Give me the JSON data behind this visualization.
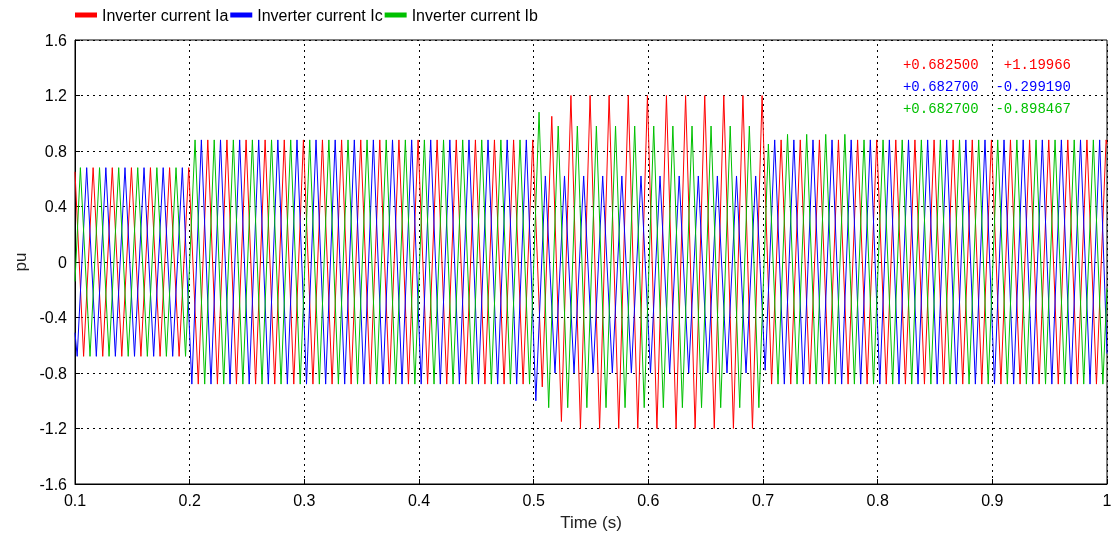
{
  "chart_data": {
    "type": "line",
    "xlabel": "Time (s)",
    "ylabel": "pu",
    "xlim": [
      0.1,
      1
    ],
    "xticks": [
      0.1,
      0.2,
      0.3,
      0.4,
      0.5,
      0.6,
      0.7,
      0.8,
      0.9,
      1
    ],
    "ylim": [
      -1.6,
      1.6
    ],
    "yticks": [
      -1.6,
      -1.2,
      -0.8,
      -0.4,
      0,
      0.4,
      0.8,
      1.2,
      1.6
    ],
    "grid": true,
    "legend": "top left",
    "marker": "none",
    "line_style": "solid",
    "annotations": [
      "+0.682500   +1.19966",
      "+0.682700  -0.299190",
      "+0.682700  -0.898467"
    ],
    "series": [
      {
        "name": "Inverter current Ia",
        "color": "#ff0000",
        "x": [
          0.1,
          0.1075,
          0.1158,
          0.1242,
          0.1325,
          0.1408,
          0.1492,
          0.1575,
          0.1658,
          0.1742,
          0.1825,
          0.1908,
          0.1992,
          0.2075,
          0.2158,
          0.2242,
          0.2325,
          0.2408,
          0.2492,
          0.2575,
          0.2658,
          0.2742,
          0.2825,
          0.2908,
          0.2992,
          0.3075,
          0.3158,
          0.3242,
          0.3325,
          0.3408,
          0.3492,
          0.3575,
          0.3658,
          0.3742,
          0.3825,
          0.3908,
          0.3992,
          0.4075,
          0.4158,
          0.4242,
          0.4325,
          0.4408,
          0.4492,
          0.4575,
          0.4658,
          0.4742,
          0.4825,
          0.4908,
          0.4992,
          0.5075,
          0.5158,
          0.5242,
          0.5325,
          0.5408,
          0.5492,
          0.5575,
          0.5658,
          0.5742,
          0.5825,
          0.5908,
          0.5992,
          0.6075,
          0.6158,
          0.6242,
          0.6325,
          0.6408,
          0.6492,
          0.6575,
          0.6658,
          0.6742,
          0.6825,
          0.6908,
          0.6992,
          0.7075,
          0.7158,
          0.7242,
          0.7325,
          0.7408,
          0.7492,
          0.7575,
          0.7658,
          0.7742,
          0.7825,
          0.7908,
          0.7992,
          0.8075,
          0.8158,
          0.8242,
          0.8325,
          0.8408,
          0.8492,
          0.8575,
          0.8658,
          0.8742,
          0.8825,
          0.8908,
          0.8992,
          0.9075,
          0.9158,
          0.9242,
          0.9325,
          0.9408,
          0.9492,
          0.9575,
          0.9658,
          0.9742,
          0.9825,
          0.9908,
          0.9992,
          1.0
        ],
        "values": [
          0.65,
          -0.68,
          0.68,
          -0.68,
          0.68,
          -0.68,
          0.68,
          -0.68,
          0.68,
          -0.68,
          0.68,
          -0.68,
          0.68,
          -0.88,
          0.88,
          -0.88,
          0.88,
          -0.88,
          0.88,
          -0.88,
          0.88,
          -0.88,
          0.88,
          -0.88,
          0.88,
          -0.88,
          0.88,
          -0.88,
          0.88,
          -0.88,
          0.88,
          -0.88,
          0.88,
          -0.88,
          0.88,
          -0.88,
          0.88,
          -0.88,
          0.88,
          -0.88,
          0.88,
          -0.88,
          0.88,
          -0.88,
          0.88,
          -0.88,
          0.88,
          -0.88,
          0.88,
          -0.9,
          1.05,
          -1.15,
          1.2,
          -1.2,
          1.2,
          -1.2,
          1.2,
          -1.2,
          1.2,
          -1.2,
          1.2,
          -1.2,
          1.2,
          -1.2,
          1.2,
          -1.2,
          1.2,
          -1.2,
          1.2,
          -1.2,
          1.2,
          -1.2,
          1.2,
          -0.88,
          0.88,
          -0.88,
          0.88,
          -0.88,
          0.88,
          -0.88,
          0.88,
          -0.88,
          0.88,
          -0.88,
          0.88,
          -0.88,
          0.88,
          -0.88,
          0.88,
          -0.88,
          0.88,
          -0.88,
          0.88,
          -0.88,
          0.88,
          -0.88,
          0.88,
          -0.88,
          0.88,
          -0.88,
          0.88,
          -0.88,
          0.88,
          -0.88,
          0.88,
          -0.88,
          0.88,
          -0.88,
          0.88,
          0.85
        ]
      },
      {
        "name": "Inverter current Ic",
        "color": "#0000ff",
        "x": [
          0.1,
          0.1019,
          0.1102,
          0.1186,
          0.1269,
          0.1352,
          0.1436,
          0.1519,
          0.1602,
          0.1686,
          0.1769,
          0.1852,
          0.1936,
          0.2019,
          0.2102,
          0.2186,
          0.2269,
          0.2352,
          0.2436,
          0.2519,
          0.2602,
          0.2686,
          0.2769,
          0.2852,
          0.2936,
          0.3019,
          0.3102,
          0.3186,
          0.3269,
          0.3352,
          0.3436,
          0.3519,
          0.3602,
          0.3686,
          0.3769,
          0.3852,
          0.3936,
          0.4019,
          0.4102,
          0.4186,
          0.4269,
          0.4352,
          0.4436,
          0.4519,
          0.4602,
          0.4686,
          0.4769,
          0.4852,
          0.4936,
          0.5019,
          0.5102,
          0.5186,
          0.5269,
          0.5352,
          0.5436,
          0.5519,
          0.5602,
          0.5686,
          0.5769,
          0.5852,
          0.5936,
          0.6019,
          0.6102,
          0.6186,
          0.6269,
          0.6352,
          0.6436,
          0.6519,
          0.6602,
          0.6686,
          0.6769,
          0.6852,
          0.6936,
          0.7019,
          0.7102,
          0.7186,
          0.7269,
          0.7352,
          0.7436,
          0.7519,
          0.7602,
          0.7686,
          0.7769,
          0.7852,
          0.7936,
          0.8019,
          0.8102,
          0.8186,
          0.8269,
          0.8352,
          0.8436,
          0.8519,
          0.8602,
          0.8686,
          0.8769,
          0.8852,
          0.8936,
          0.9019,
          0.9102,
          0.9186,
          0.9269,
          0.9352,
          0.9436,
          0.9519,
          0.9602,
          0.9686,
          0.9769,
          0.9852,
          0.9936,
          1.0
        ],
        "values": [
          -0.51,
          -0.68,
          0.68,
          -0.68,
          0.68,
          -0.68,
          0.68,
          -0.68,
          0.68,
          -0.68,
          0.68,
          -0.68,
          0.68,
          -0.88,
          0.88,
          -0.88,
          0.88,
          -0.88,
          0.88,
          -0.88,
          0.88,
          -0.88,
          0.88,
          -0.88,
          0.88,
          -0.88,
          0.88,
          -0.88,
          0.88,
          -0.88,
          0.88,
          -0.88,
          0.88,
          -0.88,
          0.88,
          -0.88,
          0.88,
          -0.88,
          0.88,
          -0.88,
          0.88,
          -0.88,
          0.88,
          -0.88,
          0.88,
          -0.88,
          0.88,
          -0.88,
          0.88,
          -1.0,
          0.62,
          -0.8,
          0.62,
          -0.8,
          0.62,
          -0.8,
          0.62,
          -0.8,
          0.62,
          -0.8,
          0.62,
          -0.8,
          0.62,
          -0.8,
          0.62,
          -0.8,
          0.62,
          -0.8,
          0.62,
          -0.8,
          0.62,
          -0.8,
          0.62,
          -0.78,
          0.88,
          -0.88,
          0.88,
          -0.88,
          0.88,
          -0.88,
          0.88,
          -0.88,
          0.88,
          -0.88,
          0.88,
          -0.88,
          0.88,
          -0.88,
          0.88,
          -0.88,
          0.88,
          -0.88,
          0.88,
          -0.88,
          0.88,
          -0.88,
          0.88,
          -0.88,
          0.88,
          -0.88,
          0.88,
          -0.88,
          0.88,
          -0.88,
          0.88,
          -0.88,
          0.88,
          -0.88,
          0.88,
          -0.66
        ]
      },
      {
        "name": "Inverter current Ib",
        "color": "#00c000",
        "x": [
          0.1,
          0.1047,
          0.1131,
          0.1214,
          0.1297,
          0.1381,
          0.1464,
          0.1547,
          0.1631,
          0.1714,
          0.1797,
          0.1881,
          0.1964,
          0.2047,
          0.2131,
          0.2214,
          0.2297,
          0.2381,
          0.2464,
          0.2547,
          0.2631,
          0.2714,
          0.2797,
          0.2881,
          0.2964,
          0.3047,
          0.3131,
          0.3214,
          0.3297,
          0.3381,
          0.3464,
          0.3547,
          0.3631,
          0.3714,
          0.3797,
          0.3881,
          0.3964,
          0.4047,
          0.4131,
          0.4214,
          0.4297,
          0.4381,
          0.4464,
          0.4547,
          0.4631,
          0.4714,
          0.4797,
          0.4881,
          0.4964,
          0.5047,
          0.5131,
          0.5214,
          0.5297,
          0.5381,
          0.5464,
          0.5547,
          0.5631,
          0.5714,
          0.5797,
          0.5881,
          0.5964,
          0.6047,
          0.6131,
          0.6214,
          0.6297,
          0.6381,
          0.6464,
          0.6547,
          0.6631,
          0.6714,
          0.6797,
          0.6881,
          0.6964,
          0.7047,
          0.7131,
          0.7214,
          0.7297,
          0.7381,
          0.7464,
          0.7547,
          0.7631,
          0.7714,
          0.7797,
          0.7881,
          0.7964,
          0.8047,
          0.8131,
          0.8214,
          0.8297,
          0.8381,
          0.8464,
          0.8547,
          0.8631,
          0.8714,
          0.8797,
          0.8881,
          0.8964,
          0.9047,
          0.9131,
          0.9214,
          0.9297,
          0.9381,
          0.9464,
          0.9547,
          0.9631,
          0.9714,
          0.9797,
          0.9881,
          0.9964,
          1.0
        ],
        "values": [
          -0.14,
          0.68,
          -0.68,
          0.68,
          -0.68,
          0.68,
          -0.68,
          0.68,
          -0.68,
          0.68,
          -0.68,
          0.68,
          -0.68,
          0.88,
          -0.88,
          0.88,
          -0.88,
          0.88,
          -0.88,
          0.88,
          -0.88,
          0.88,
          -0.88,
          0.88,
          -0.88,
          0.88,
          -0.88,
          0.88,
          -0.88,
          0.88,
          -0.88,
          0.88,
          -0.88,
          0.88,
          -0.88,
          0.88,
          -0.88,
          0.88,
          -0.88,
          0.88,
          -0.88,
          0.88,
          -0.88,
          0.88,
          -0.88,
          0.88,
          -0.88,
          0.88,
          -0.88,
          1.08,
          -1.05,
          0.98,
          -1.05,
          0.98,
          -1.05,
          0.98,
          -1.05,
          0.98,
          -1.05,
          0.98,
          -1.05,
          0.98,
          -1.05,
          0.98,
          -1.05,
          0.98,
          -1.05,
          0.98,
          -1.05,
          0.98,
          -1.05,
          0.98,
          -1.05,
          0.85,
          -0.88,
          0.92,
          -0.88,
          0.92,
          -0.88,
          0.92,
          -0.88,
          0.92,
          -0.88,
          0.88,
          -0.88,
          0.88,
          -0.88,
          0.88,
          -0.88,
          0.88,
          -0.88,
          0.88,
          -0.88,
          0.88,
          -0.88,
          0.88,
          -0.88,
          0.88,
          -0.88,
          0.88,
          -0.88,
          0.88,
          -0.88,
          0.88,
          -0.88,
          0.88,
          -0.88,
          0.88,
          -0.88,
          -0.19
        ]
      }
    ]
  }
}
